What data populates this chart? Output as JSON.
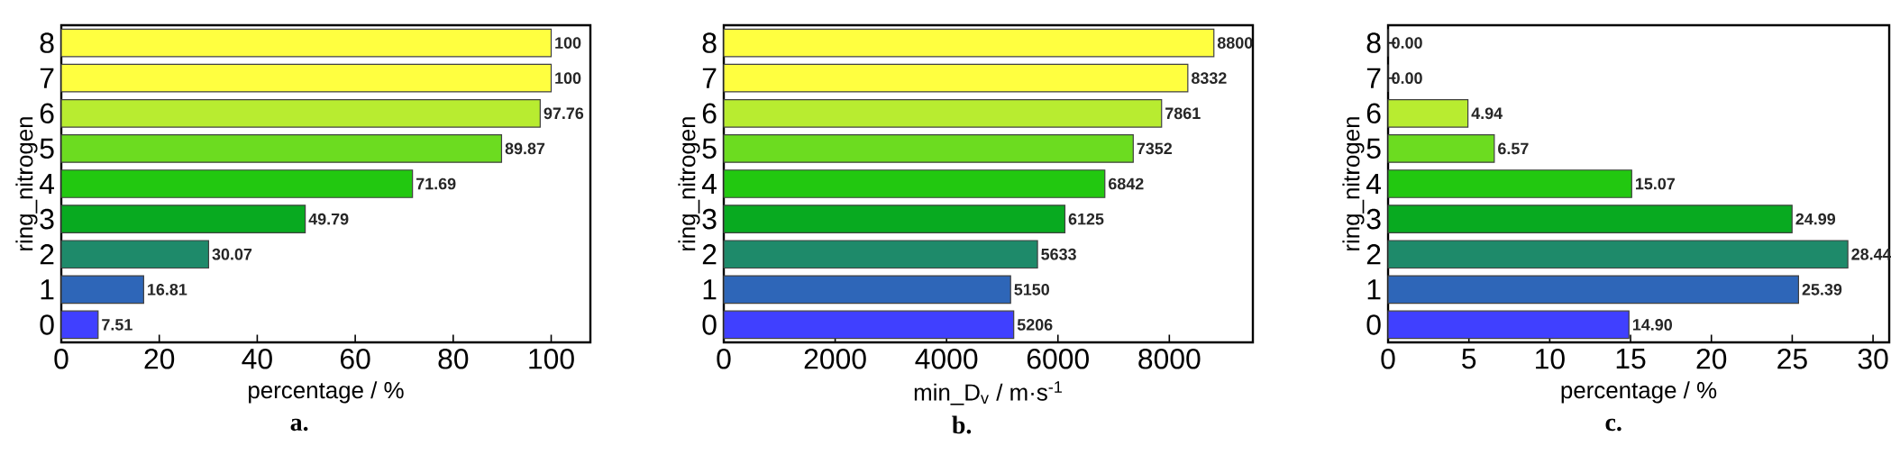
{
  "chart_data": [
    {
      "type": "bar",
      "orientation": "horizontal",
      "categories": [
        "8",
        "7",
        "6",
        "5",
        "4",
        "3",
        "2",
        "1",
        "0"
      ],
      "values": [
        100,
        100,
        97.76,
        89.87,
        71.69,
        49.79,
        30.07,
        16.81,
        7.51
      ],
      "colors": [
        "#ffff40",
        "#ffff40",
        "#b8ec30",
        "#6cdc20",
        "#22c810",
        "#08aa20",
        "#1e8a6a",
        "#2e66b8",
        "#4040ff"
      ],
      "xlim": [
        0,
        108
      ],
      "xticks": [
        0,
        20,
        40,
        60,
        80,
        100
      ],
      "xlabel": "percentage / %",
      "ylabel": "ring_nitrogen",
      "data_labels": true,
      "annotations": [
        "a."
      ]
    },
    {
      "type": "bar",
      "orientation": "horizontal",
      "categories": [
        "8",
        "7",
        "6",
        "5",
        "4",
        "3",
        "2",
        "1",
        "0"
      ],
      "values": [
        8800,
        8332,
        7861,
        7352,
        6842,
        6125,
        5633,
        5150,
        5206
      ],
      "colors": [
        "#ffff40",
        "#ffff40",
        "#b8ec30",
        "#6cdc20",
        "#22c810",
        "#08aa20",
        "#1e8a6a",
        "#2e66b8",
        "#4040ff"
      ],
      "xlim": [
        0,
        9500
      ],
      "xticks": [
        0,
        2000,
        4000,
        6000,
        8000
      ],
      "xlabel": "min_D$_{v}$ / m·s$^{-1}$",
      "ylabel": "ring_nitrogen",
      "data_labels": true,
      "annotations": [
        "b."
      ]
    },
    {
      "type": "bar",
      "orientation": "horizontal",
      "categories": [
        "8",
        "7",
        "6",
        "5",
        "4",
        "3",
        "2",
        "1",
        "0"
      ],
      "values": [
        0,
        0,
        4.94,
        6.57,
        15.07,
        24.99,
        28.44,
        25.39,
        14.9
      ],
      "value_labels": [
        "0.00",
        "0.00",
        "4.94",
        "6.57",
        "15.07",
        "24.99",
        "28.44",
        "25.39",
        "14.90"
      ],
      "colors": [
        "#ffff40",
        "#ffff40",
        "#b8ec30",
        "#6cdc20",
        "#22c810",
        "#08aa20",
        "#1e8a6a",
        "#2e66b8",
        "#4040ff"
      ],
      "xlim": [
        0,
        31
      ],
      "xticks": [
        0,
        5,
        10,
        15,
        20,
        25,
        30
      ],
      "xlabel": "percentage / %",
      "ylabel": "ring_nitrogen",
      "annotations": [
        "c."
      ]
    }
  ]
}
